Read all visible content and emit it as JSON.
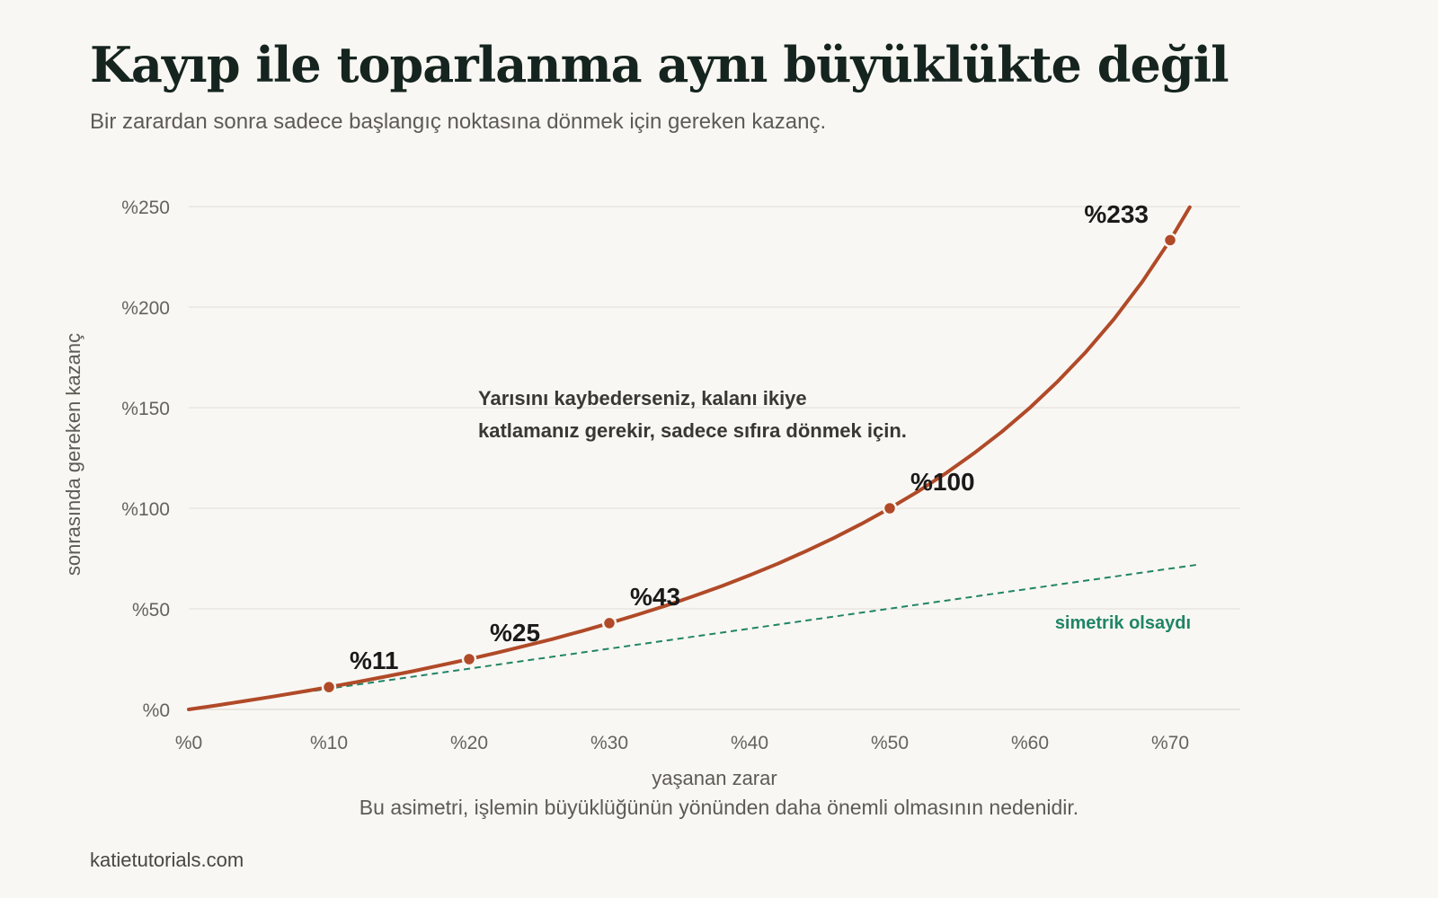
{
  "header": {
    "title": "Kayıp ile toparlanma aynı büyüklükte değil",
    "subtitle": "Bir zarardan sonra sadece başlangıç noktasına dönmek için gereken kazanç."
  },
  "chart_data": {
    "type": "line",
    "xlabel": "yaşanan zarar",
    "ylabel": "sonrasında gereken kazanç",
    "xlim": [
      0,
      72
    ],
    "ylim": [
      0,
      250
    ],
    "x_ticks": [
      0,
      10,
      20,
      30,
      40,
      50,
      60,
      70
    ],
    "x_tick_labels": [
      "%0",
      "%10",
      "%20",
      "%30",
      "%40",
      "%50",
      "%60",
      "%70"
    ],
    "y_ticks": [
      0,
      50,
      100,
      150,
      200,
      250
    ],
    "y_tick_labels": [
      "%0",
      "%50",
      "%100",
      "%150",
      "%200",
      "%250"
    ],
    "grid": "horizontal",
    "series": [
      {
        "x": [
          0,
          2,
          4,
          6,
          8,
          10,
          12,
          14,
          16,
          18,
          20,
          22,
          24,
          26,
          28,
          30,
          32,
          34,
          36,
          38,
          40,
          42,
          44,
          46,
          48,
          50,
          52,
          54,
          56,
          58,
          60,
          62,
          64,
          66,
          68,
          70,
          71.4
        ],
        "y": [
          0,
          2.0,
          4.2,
          6.4,
          8.7,
          11.1,
          13.6,
          16.3,
          19.0,
          22.0,
          25.0,
          28.2,
          31.6,
          35.1,
          38.9,
          42.9,
          47.1,
          51.5,
          56.3,
          61.3,
          66.7,
          72.4,
          78.6,
          85.2,
          92.3,
          100,
          108.3,
          117.4,
          127.3,
          138.1,
          150,
          163.2,
          177.8,
          194.1,
          212.5,
          233.3,
          249.7
        ],
        "color": "#b04a28",
        "style": "solid"
      },
      {
        "name": "simetrik olsaydı",
        "x": [
          10,
          72
        ],
        "y": [
          10,
          72
        ],
        "color": "#1f8566",
        "style": "dashed"
      }
    ],
    "highlighted_points": [
      {
        "x": 10,
        "y": 11.1,
        "label": "%11"
      },
      {
        "x": 20,
        "y": 25,
        "label": "%25"
      },
      {
        "x": 30,
        "y": 42.9,
        "label": "%43"
      },
      {
        "x": 50,
        "y": 100,
        "label": "%100"
      },
      {
        "x": 70,
        "y": 233.3,
        "label": "%233"
      }
    ],
    "annotation": {
      "lines": [
        "Yarısını kaybederseniz, kalanı ikiye",
        "katlamanız gerekir, sadece sıfıra dönmek için."
      ]
    }
  },
  "footer": {
    "note": "Bu asimetri, işlemin büyüklüğünün yönünden daha önemli olmasının nedenidir.",
    "source": "katietutorials.com"
  },
  "colors": {
    "background": "#f9f7f3",
    "curve": "#b04a28",
    "symmetric": "#1f8566",
    "grid": "#e4e1dc",
    "title": "#15241f",
    "muted": "#5e5a55"
  }
}
